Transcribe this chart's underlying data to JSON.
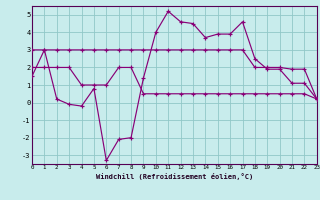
{
  "background_color": "#c8ecec",
  "grid_color": "#90c8c8",
  "line_color": "#880077",
  "xlabel": "Windchill (Refroidissement éolien,°C)",
  "xlim": [
    0,
    23
  ],
  "ylim": [
    -3.5,
    5.5
  ],
  "yticks": [
    -3,
    -2,
    -1,
    0,
    1,
    2,
    3,
    4,
    5
  ],
  "xticks": [
    0,
    1,
    2,
    3,
    4,
    5,
    6,
    7,
    8,
    9,
    10,
    11,
    12,
    13,
    14,
    15,
    16,
    17,
    18,
    19,
    20,
    21,
    22,
    23
  ],
  "curve_x": [
    0,
    1,
    2,
    3,
    4,
    5,
    6,
    7,
    8,
    9,
    10,
    11,
    12,
    13,
    14,
    15,
    16,
    17,
    18,
    19,
    20,
    21,
    22,
    23
  ],
  "curve_y": [
    1.5,
    3.0,
    0.2,
    -0.1,
    -0.2,
    0.8,
    -3.3,
    -2.1,
    -2.0,
    1.4,
    4.0,
    5.2,
    4.6,
    4.5,
    3.7,
    3.9,
    3.9,
    4.6,
    2.5,
    1.9,
    1.9,
    1.1,
    1.1,
    0.2
  ],
  "upper_x": [
    0,
    1,
    2,
    3,
    4,
    5,
    6,
    7,
    8,
    9,
    10,
    11,
    12,
    13,
    14,
    15,
    16,
    17,
    18,
    19,
    20,
    21,
    22,
    23
  ],
  "upper_y": [
    3.0,
    3.0,
    3.0,
    3.0,
    3.0,
    3.0,
    3.0,
    3.0,
    3.0,
    3.0,
    3.0,
    3.0,
    3.0,
    3.0,
    3.0,
    3.0,
    3.0,
    3.0,
    2.0,
    2.0,
    2.0,
    1.9,
    1.9,
    0.2
  ],
  "lower_x": [
    0,
    1,
    2,
    3,
    4,
    5,
    6,
    7,
    8,
    9,
    10,
    11,
    12,
    13,
    14,
    15,
    16,
    17,
    18,
    19,
    20,
    21,
    22,
    23
  ],
  "lower_y": [
    2.0,
    2.0,
    2.0,
    2.0,
    1.0,
    1.0,
    1.0,
    2.0,
    2.0,
    0.5,
    0.5,
    0.5,
    0.5,
    0.5,
    0.5,
    0.5,
    0.5,
    0.5,
    0.5,
    0.5,
    0.5,
    0.5,
    0.5,
    0.2
  ]
}
